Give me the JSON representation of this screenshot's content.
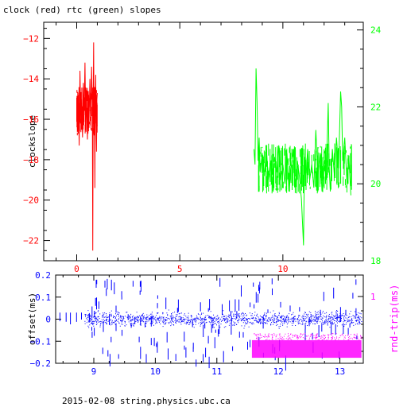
{
  "footer": "2015-02-08 string.physics.ubc.ca",
  "colors": {
    "clock": "#ff0000",
    "rtc": "#00ff00",
    "offset": "#0000ff",
    "rndtrip": "#ff00ff",
    "axis": "#000000"
  },
  "chart_data": [
    {
      "type": "line",
      "title": "clock (red) rtc (green) slopes",
      "ylabel": "clockslope",
      "x_ticks": [
        0,
        5,
        10
      ],
      "xlim": [
        -1.6,
        13.9
      ],
      "y_left_ticks": [
        -12,
        -14,
        -16,
        -18,
        -20,
        -22
      ],
      "ylim_left": [
        -23.0,
        -11.2
      ],
      "y_right_ticks": [
        18,
        20,
        22,
        24
      ],
      "ylim_right": [
        18.0,
        24.2
      ],
      "series": [
        {
          "axis": "left",
          "points": [
            [
              0.0,
              -15.4
            ],
            [
              0.04,
              -16.6
            ],
            [
              0.08,
              -14.8
            ],
            [
              0.12,
              -17.3
            ],
            [
              0.16,
              -13.6
            ],
            [
              0.2,
              -16.2
            ],
            [
              0.24,
              -15.0
            ],
            [
              0.28,
              -16.9
            ],
            [
              0.32,
              -14.2
            ],
            [
              0.36,
              -15.8
            ],
            [
              0.4,
              -13.2
            ],
            [
              0.44,
              -16.4
            ],
            [
              0.48,
              -15.1
            ],
            [
              0.52,
              -17.0
            ],
            [
              0.56,
              -14.6
            ],
            [
              0.6,
              -15.9
            ],
            [
              0.64,
              -14.0
            ],
            [
              0.68,
              -16.3
            ],
            [
              0.72,
              -13.4
            ],
            [
              0.76,
              -15.6
            ],
            [
              0.78,
              -22.5
            ],
            [
              0.8,
              -15.2
            ],
            [
              0.82,
              -12.2
            ],
            [
              0.84,
              -16.8
            ],
            [
              0.86,
              -14.4
            ],
            [
              0.88,
              -19.4
            ],
            [
              0.9,
              -15.3
            ],
            [
              0.92,
              -13.8
            ],
            [
              0.94,
              -16.2
            ],
            [
              0.96,
              -17.6
            ],
            [
              0.98,
              -15.0
            ],
            [
              1.0,
              -14.7
            ]
          ]
        },
        {
          "axis": "right",
          "points": [
            [
              8.6,
              20.9
            ],
            [
              8.65,
              20.5
            ],
            [
              8.7,
              23.0
            ],
            [
              8.75,
              22.1
            ],
            [
              8.8,
              20.6
            ],
            [
              8.85,
              21.2
            ],
            [
              8.9,
              20.3
            ],
            [
              9.0,
              20.8
            ],
            [
              9.1,
              20.2
            ],
            [
              9.2,
              20.9
            ],
            [
              9.3,
              20.1
            ],
            [
              9.4,
              20.6
            ],
            [
              9.5,
              19.9
            ],
            [
              9.6,
              20.7
            ],
            [
              9.7,
              20.3
            ],
            [
              9.8,
              21.0
            ],
            [
              9.9,
              20.1
            ],
            [
              10.0,
              20.5
            ],
            [
              10.1,
              20.0
            ],
            [
              10.2,
              20.8
            ],
            [
              10.3,
              19.8
            ],
            [
              10.4,
              20.4
            ],
            [
              10.5,
              20.9
            ],
            [
              10.6,
              19.9
            ],
            [
              10.7,
              20.6
            ],
            [
              10.8,
              20.2
            ],
            [
              10.9,
              19.6
            ],
            [
              11.0,
              18.4
            ],
            [
              11.05,
              20.7
            ],
            [
              11.1,
              20.0
            ],
            [
              11.2,
              20.9
            ],
            [
              11.3,
              20.1
            ],
            [
              11.4,
              20.5
            ],
            [
              11.5,
              19.9
            ],
            [
              11.6,
              21.4
            ],
            [
              11.7,
              20.2
            ],
            [
              11.8,
              20.8
            ],
            [
              11.9,
              19.8
            ],
            [
              12.0,
              20.6
            ],
            [
              12.1,
              20.1
            ],
            [
              12.2,
              22.1
            ],
            [
              12.25,
              20.4
            ],
            [
              12.3,
              19.8
            ],
            [
              12.4,
              20.9
            ],
            [
              12.5,
              20.2
            ],
            [
              12.6,
              21.2
            ],
            [
              12.7,
              20.4
            ],
            [
              12.8,
              22.4
            ],
            [
              12.85,
              22.0
            ],
            [
              12.9,
              20.6
            ],
            [
              13.0,
              21.2
            ],
            [
              13.1,
              20.1
            ],
            [
              13.2,
              20.7
            ],
            [
              13.3,
              19.7
            ]
          ]
        }
      ]
    },
    {
      "type": "scatter",
      "ylabel": "offset(ms)",
      "y2label": "rnd-trip(ms)",
      "x_ticks": [
        9,
        10,
        11,
        12,
        13
      ],
      "xlim": [
        8.38,
        13.38
      ],
      "y_ticks": [
        0.2,
        0.1,
        0,
        -0.1,
        -0.2
      ],
      "y_tick_labels": [
        "0.2",
        "0.1",
        "0",
        "−0.1",
        "−0.2"
      ],
      "ylim": [
        -0.2,
        0.2
      ],
      "y2_ticks": [
        1
      ],
      "series": [
        {
          "name": "offset",
          "x_start": 8.85,
          "x_end": 13.35,
          "center": 0.0,
          "spread": 0.03
        },
        {
          "name": "rnd-trip",
          "x_start": 11.57,
          "x_end": 13.35,
          "y_low": -0.175,
          "y_high": -0.095
        }
      ]
    }
  ]
}
